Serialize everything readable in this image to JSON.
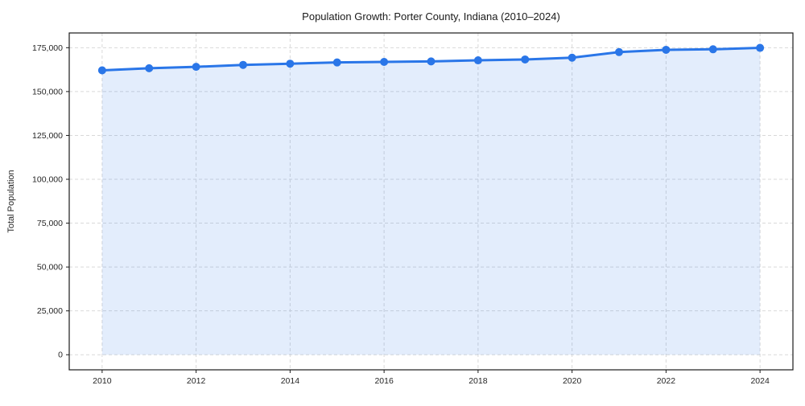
{
  "figure": {
    "background": "#ffffff"
  },
  "chart_data": {
    "type": "line",
    "title": "Population Growth: Porter County, Indiana (2010–2024)",
    "xlabel": "",
    "ylabel": "Total Population",
    "x": [
      2010,
      2011,
      2012,
      2013,
      2014,
      2015,
      2016,
      2017,
      2018,
      2019,
      2020,
      2021,
      2022,
      2023,
      2024
    ],
    "series": [
      {
        "name": "Total Population",
        "values": [
          162100,
          163300,
          164100,
          165200,
          165900,
          166600,
          166900,
          167200,
          167800,
          168300,
          169300,
          172500,
          173800,
          174100,
          174900
        ]
      }
    ],
    "x_tick_values": [
      2010,
      2012,
      2014,
      2016,
      2018,
      2020,
      2022,
      2024
    ],
    "x_tick_labels": [
      "2010",
      "2012",
      "2014",
      "2016",
      "2018",
      "2020",
      "2022",
      "2024"
    ],
    "y_tick_values": [
      0,
      25000,
      50000,
      75000,
      100000,
      125000,
      150000,
      175000
    ],
    "y_tick_labels": [
      "0",
      "25,000",
      "50,000",
      "75,000",
      "100,000",
      "125,000",
      "150,000",
      "175,000"
    ],
    "xlim": [
      2009.3,
      2024.7
    ],
    "ylim": [
      -8600,
      183400
    ],
    "grid": true,
    "grid_style": "dashed",
    "legend_position": "none",
    "marker": "circle",
    "colors": {
      "line": "#2a76e8",
      "marker": "#2a76e8",
      "area_fill": "rgba(42,118,232,0.13)",
      "gridline": "#d9d9d9",
      "spine": "#1a1a1a",
      "text": "#262626"
    }
  }
}
